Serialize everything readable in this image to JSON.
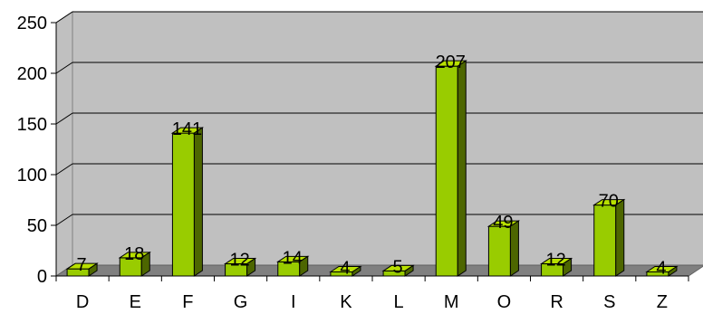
{
  "chart_data": {
    "type": "bar",
    "title": "",
    "xlabel": "",
    "ylabel": "",
    "categories": [
      "D",
      "E",
      "F",
      "G",
      "I",
      "K",
      "L",
      "M",
      "O",
      "R",
      "S",
      "Z"
    ],
    "values": [
      7,
      18,
      141,
      12,
      14,
      4,
      5,
      207,
      49,
      12,
      70,
      4
    ],
    "ylim": [
      0,
      250
    ],
    "yticks": [
      0,
      50,
      100,
      150,
      200,
      250
    ],
    "grid": true,
    "legend": "none",
    "style": "3d"
  },
  "colors": {
    "bar_front": "#99cc00",
    "bar_top": "#b8e000",
    "bar_side": "#4d6600",
    "bar_outline": "#000000",
    "back_wall": "#c0c0c0",
    "floor": "#808080",
    "gridline": "#000000"
  }
}
